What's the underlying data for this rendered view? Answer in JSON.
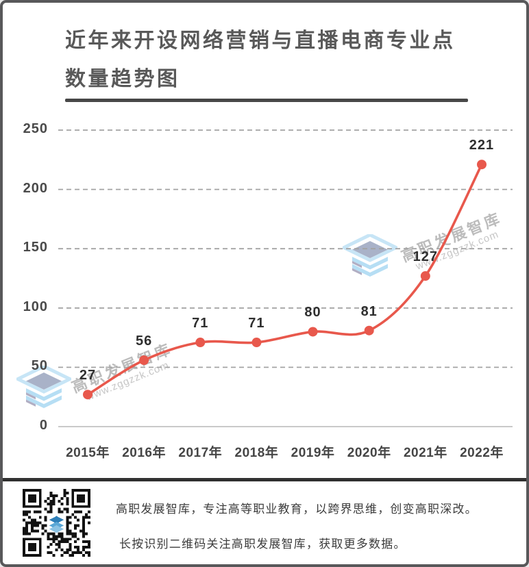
{
  "title": {
    "line1": "近年来开设网络营销与直播电商专业点",
    "line2": "数量趋势图"
  },
  "chart_data": {
    "type": "line",
    "title": "近年来开设网络营销与直播电商专业点数量趋势图",
    "categories": [
      "2015年",
      "2016年",
      "2017年",
      "2018年",
      "2019年",
      "2020年",
      "2021年",
      "2022年"
    ],
    "values": [
      27,
      56,
      71,
      71,
      80,
      81,
      127,
      221
    ],
    "xlabel": "",
    "ylabel": "",
    "y_ticks": [
      0,
      50,
      100,
      150,
      200,
      250
    ],
    "ylim": [
      0,
      250
    ],
    "grid": "horizontal-dashed",
    "legend": "none",
    "marker": "circle",
    "line_color": "#e8584c"
  },
  "watermarks": {
    "brand": "高职发展智库",
    "site": "www.zggzzk.com"
  },
  "footer": {
    "line1": "高职发展智库，专注高等职业教育，以跨界思维，创变高职深改。",
    "line2": "长按识别二维码关注高职发展智库，获取更多数据。"
  },
  "colors": {
    "accent": "#e8584c",
    "title_text": "#595959",
    "title_rule": "#474747",
    "axis_text": "#4a4a4a",
    "value_text": "#2f2f2f",
    "gridline": "#a3a3a3",
    "baseline": "#c9c9c9",
    "frame_border": "#58585a",
    "footer_divider": "#303030",
    "watermark_blue": "#b6def4",
    "watermark_gray": "#b1aec3",
    "qr_logo_blue": "#2e7fb8"
  }
}
